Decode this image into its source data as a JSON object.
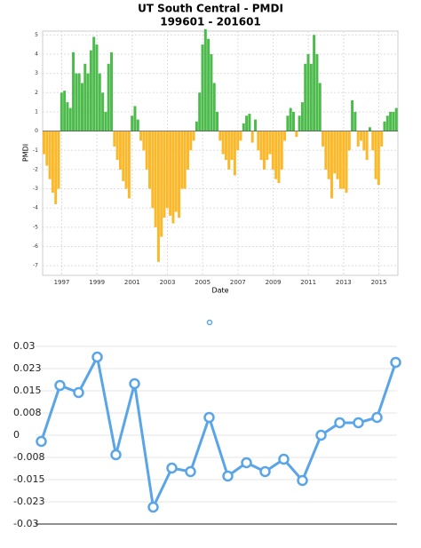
{
  "chart_data": [
    {
      "type": "bar",
      "title": "UT South Central - PMDI",
      "subtitle": "199601 - 201601",
      "y_label": "PMDI",
      "x_label": "Date",
      "positive_color": "#4cbb4c",
      "negative_color": "#fbb829",
      "grid": true,
      "ylim": [
        -7.5,
        5.2
      ],
      "yticks": [
        -7,
        -6,
        -5,
        -4,
        -3,
        -2,
        -1,
        0,
        1,
        2,
        3,
        4,
        5
      ],
      "categories": [
        null,
        null,
        null,
        null,
        null,
        null,
        "1997",
        null,
        null,
        null,
        null,
        null,
        null,
        null,
        null,
        null,
        null,
        null,
        "1999",
        null,
        null,
        null,
        null,
        null,
        null,
        null,
        null,
        null,
        null,
        null,
        "2001",
        null,
        null,
        null,
        null,
        null,
        null,
        null,
        null,
        null,
        null,
        null,
        "2003",
        null,
        null,
        null,
        null,
        null,
        null,
        null,
        null,
        null,
        null,
        null,
        "2005",
        null,
        null,
        null,
        null,
        null,
        null,
        null,
        null,
        null,
        null,
        null,
        "2007",
        null,
        null,
        null,
        null,
        null,
        null,
        null,
        null,
        null,
        null,
        null,
        "2009",
        null,
        null,
        null,
        null,
        null,
        null,
        null,
        null,
        null,
        null,
        null,
        "2011",
        null,
        null,
        null,
        null,
        null,
        null,
        null,
        null,
        null,
        null,
        null,
        "2013",
        null,
        null,
        null,
        null,
        null,
        null,
        null,
        null,
        null,
        null,
        null,
        "2015",
        null,
        null,
        null,
        null,
        null,
        null
      ],
      "values": [
        -1.2,
        -1.8,
        -2.5,
        -3.2,
        -3.8,
        -3.0,
        2.0,
        2.1,
        1.5,
        1.2,
        4.1,
        3.0,
        3.0,
        2.5,
        3.5,
        3.0,
        4.2,
        4.9,
        4.5,
        3.0,
        2.0,
        1.0,
        3.5,
        4.1,
        -0.8,
        -1.5,
        -2.0,
        -2.6,
        -3.0,
        -3.5,
        0.8,
        1.3,
        0.6,
        -0.5,
        -1.0,
        -2.0,
        -3.0,
        -4.0,
        -5.0,
        -6.8,
        -5.5,
        -4.5,
        -4.0,
        -4.4,
        -4.8,
        -4.2,
        -4.5,
        -3.0,
        -3.0,
        -2.0,
        -1.0,
        -0.5,
        0.5,
        2.0,
        4.5,
        5.3,
        4.8,
        4.0,
        2.5,
        1.0,
        -0.5,
        -1.2,
        -1.5,
        -2.0,
        -1.5,
        -2.3,
        -1.0,
        -0.5,
        0.4,
        0.8,
        0.9,
        -0.6,
        0.6,
        -1.0,
        -1.5,
        -2.0,
        -1.5,
        -1.2,
        -2.0,
        -2.5,
        -2.7,
        -2.0,
        -0.5,
        0.8,
        1.2,
        1.0,
        -0.3,
        0.8,
        1.5,
        3.5,
        4.0,
        3.5,
        5.0,
        4.0,
        2.5,
        -0.8,
        -2.0,
        -2.5,
        -3.5,
        -2.2,
        -2.5,
        -3.0,
        -3.0,
        -3.2,
        -1.0,
        1.6,
        1.0,
        -0.8,
        -0.5,
        -1.0,
        -1.5,
        0.2,
        -1.0,
        -2.5,
        -2.8,
        -0.8,
        0.5,
        0.8,
        1.0,
        1.0,
        1.2
      ]
    },
    {
      "type": "line",
      "color": "#5aa5e8",
      "grid": true,
      "ylim": [
        -0.03,
        0.03
      ],
      "yticks": [
        -0.03,
        {
          "value": -0.0225,
          "label": "-0.023"
        },
        -0.015,
        {
          "value": -0.0075,
          "label": "-0.008"
        },
        0,
        {
          "value": 0.0075,
          "label": "0.008"
        },
        0.015,
        {
          "value": 0.0225,
          "label": "0.023"
        },
        0.03
      ],
      "categories": [
        null,
        null,
        null,
        null,
        null,
        null,
        null,
        null,
        null,
        null,
        null,
        null,
        null,
        null,
        null,
        null,
        null,
        null,
        null,
        null
      ],
      "values": [
        -0.0021,
        0.0168,
        0.0144,
        0.0264,
        -0.0066,
        0.0174,
        -0.0243,
        -0.0111,
        -0.0123,
        0.006,
        -0.0138,
        -0.0093,
        -0.0123,
        -0.0081,
        -0.0153,
        0,
        0.0042,
        0.0042,
        0.006,
        0.0246
      ]
    }
  ]
}
